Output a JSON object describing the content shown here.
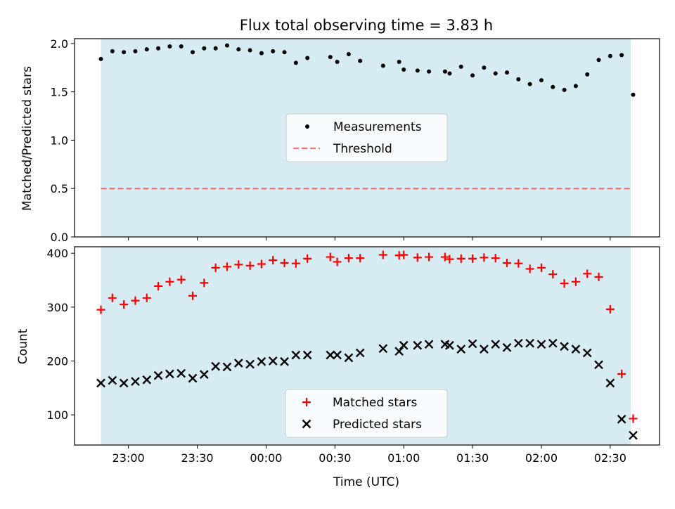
{
  "chart_data": {
    "title": "Flux total observing time = 3.83 h",
    "xlabel": "Time (UTC)",
    "x_tick_labels": [
      "23:00",
      "23:30",
      "00:00",
      "00:30",
      "01:00",
      "01:30",
      "02:00",
      "02:30"
    ],
    "observing_window": {
      "start": "22:48",
      "end": "02:39",
      "color": "#add8e6"
    },
    "panels": [
      {
        "type": "scatter",
        "ylabel": "Matched/Predicted stars",
        "ylim": [
          0,
          2.05
        ],
        "y_ticks": [
          "0.0",
          "0.5",
          "1.0",
          "1.5",
          "2.0"
        ],
        "legend": {
          "position": "center",
          "entries": [
            "Measurements",
            "Threshold"
          ]
        },
        "threshold": {
          "value": 0.5,
          "color": "#f07070"
        },
        "series": [
          {
            "name": "Measurements",
            "color": "#000000",
            "points": [
              [
                "22:48",
                1.84
              ],
              [
                "22:53",
                1.92
              ],
              [
                "22:58",
                1.91
              ],
              [
                "23:03",
                1.92
              ],
              [
                "23:08",
                1.94
              ],
              [
                "23:13",
                1.95
              ],
              [
                "23:18",
                1.97
              ],
              [
                "23:23",
                1.97
              ],
              [
                "23:28",
                1.91
              ],
              [
                "23:33",
                1.95
              ],
              [
                "23:38",
                1.95
              ],
              [
                "23:43",
                1.98
              ],
              [
                "23:48",
                1.94
              ],
              [
                "23:53",
                1.93
              ],
              [
                "23:58",
                1.9
              ],
              [
                "00:03",
                1.92
              ],
              [
                "00:08",
                1.91
              ],
              [
                "00:13",
                1.8
              ],
              [
                "00:18",
                1.85
              ],
              [
                "00:28",
                1.86
              ],
              [
                "00:31",
                1.81
              ],
              [
                "00:36",
                1.89
              ],
              [
                "00:41",
                1.82
              ],
              [
                "00:51",
                1.77
              ],
              [
                "00:58",
                1.81
              ],
              [
                "01:00",
                1.73
              ],
              [
                "01:06",
                1.72
              ],
              [
                "01:11",
                1.71
              ],
              [
                "01:18",
                1.71
              ],
              [
                "01:20",
                1.69
              ],
              [
                "01:25",
                1.76
              ],
              [
                "01:30",
                1.67
              ],
              [
                "01:35",
                1.75
              ],
              [
                "01:40",
                1.69
              ],
              [
                "01:45",
                1.7
              ],
              [
                "01:50",
                1.63
              ],
              [
                "01:55",
                1.58
              ],
              [
                "02:00",
                1.62
              ],
              [
                "02:05",
                1.55
              ],
              [
                "02:10",
                1.52
              ],
              [
                "02:15",
                1.56
              ],
              [
                "02:20",
                1.68
              ],
              [
                "02:25",
                1.83
              ],
              [
                "02:30",
                1.87
              ],
              [
                "02:35",
                1.88
              ],
              [
                "02:40",
                1.47
              ]
            ]
          }
        ]
      },
      {
        "type": "scatter",
        "ylabel": "Count",
        "ylim": [
          44,
          412
        ],
        "y_ticks": [
          "100",
          "200",
          "300",
          "400"
        ],
        "legend": {
          "position": "lower center",
          "entries": [
            "Matched stars",
            "Predicted stars"
          ]
        },
        "series": [
          {
            "name": "Matched stars",
            "marker": "plus",
            "color": "#ff0000",
            "points": [
              [
                "22:48",
                295
              ],
              [
                "22:53",
                317
              ],
              [
                "22:58",
                305
              ],
              [
                "23:03",
                312
              ],
              [
                "23:08",
                317
              ],
              [
                "23:13",
                339
              ],
              [
                "23:18",
                347
              ],
              [
                "23:23",
                351
              ],
              [
                "23:28",
                321
              ],
              [
                "23:33",
                345
              ],
              [
                "23:38",
                373
              ],
              [
                "23:43",
                375
              ],
              [
                "23:48",
                379
              ],
              [
                "23:53",
                377
              ],
              [
                "23:58",
                380
              ],
              [
                "00:03",
                387
              ],
              [
                "00:08",
                382
              ],
              [
                "00:13",
                381
              ],
              [
                "00:18",
                390
              ],
              [
                "00:28",
                393
              ],
              [
                "00:31",
                384
              ],
              [
                "00:36",
                391
              ],
              [
                "00:41",
                391
              ],
              [
                "00:51",
                397
              ],
              [
                "00:58",
                396
              ],
              [
                "01:00",
                397
              ],
              [
                "01:06",
                392
              ],
              [
                "01:11",
                393
              ],
              [
                "01:18",
                393
              ],
              [
                "01:20",
                389
              ],
              [
                "01:25",
                390
              ],
              [
                "01:30",
                390
              ],
              [
                "01:35",
                392
              ],
              [
                "01:40",
                391
              ],
              [
                "01:45",
                382
              ],
              [
                "01:50",
                381
              ],
              [
                "01:55",
                371
              ],
              [
                "02:00",
                373
              ],
              [
                "02:05",
                361
              ],
              [
                "02:10",
                344
              ],
              [
                "02:15",
                347
              ],
              [
                "02:20",
                362
              ],
              [
                "02:25",
                356
              ],
              [
                "02:30",
                296
              ],
              [
                "02:35",
                176
              ],
              [
                "02:40",
                93
              ]
            ]
          },
          {
            "name": "Predicted stars",
            "marker": "x",
            "color": "#000000",
            "points": [
              [
                "22:48",
                159
              ],
              [
                "22:53",
                164
              ],
              [
                "22:58",
                159
              ],
              [
                "23:03",
                162
              ],
              [
                "23:08",
                165
              ],
              [
                "23:13",
                173
              ],
              [
                "23:18",
                176
              ],
              [
                "23:23",
                177
              ],
              [
                "23:28",
                168
              ],
              [
                "23:33",
                175
              ],
              [
                "23:38",
                190
              ],
              [
                "23:43",
                189
              ],
              [
                "23:48",
                196
              ],
              [
                "23:53",
                194
              ],
              [
                "23:58",
                199
              ],
              [
                "00:03",
                200
              ],
              [
                "00:08",
                199
              ],
              [
                "00:13",
                211
              ],
              [
                "00:18",
                211
              ],
              [
                "00:28",
                211
              ],
              [
                "00:31",
                211
              ],
              [
                "00:36",
                206
              ],
              [
                "00:41",
                215
              ],
              [
                "00:51",
                223
              ],
              [
                "00:58",
                218
              ],
              [
                "01:00",
                229
              ],
              [
                "01:06",
                229
              ],
              [
                "01:11",
                231
              ],
              [
                "01:18",
                231
              ],
              [
                "01:20",
                229
              ],
              [
                "01:25",
                222
              ],
              [
                "01:30",
                232
              ],
              [
                "01:35",
                222
              ],
              [
                "01:40",
                231
              ],
              [
                "01:45",
                225
              ],
              [
                "01:50",
                233
              ],
              [
                "01:55",
                233
              ],
              [
                "02:00",
                231
              ],
              [
                "02:05",
                233
              ],
              [
                "02:10",
                227
              ],
              [
                "02:15",
                222
              ],
              [
                "02:20",
                215
              ],
              [
                "02:25",
                193
              ],
              [
                "02:30",
                159
              ],
              [
                "02:35",
                92
              ],
              [
                "02:40",
                62
              ]
            ]
          }
        ]
      }
    ]
  }
}
